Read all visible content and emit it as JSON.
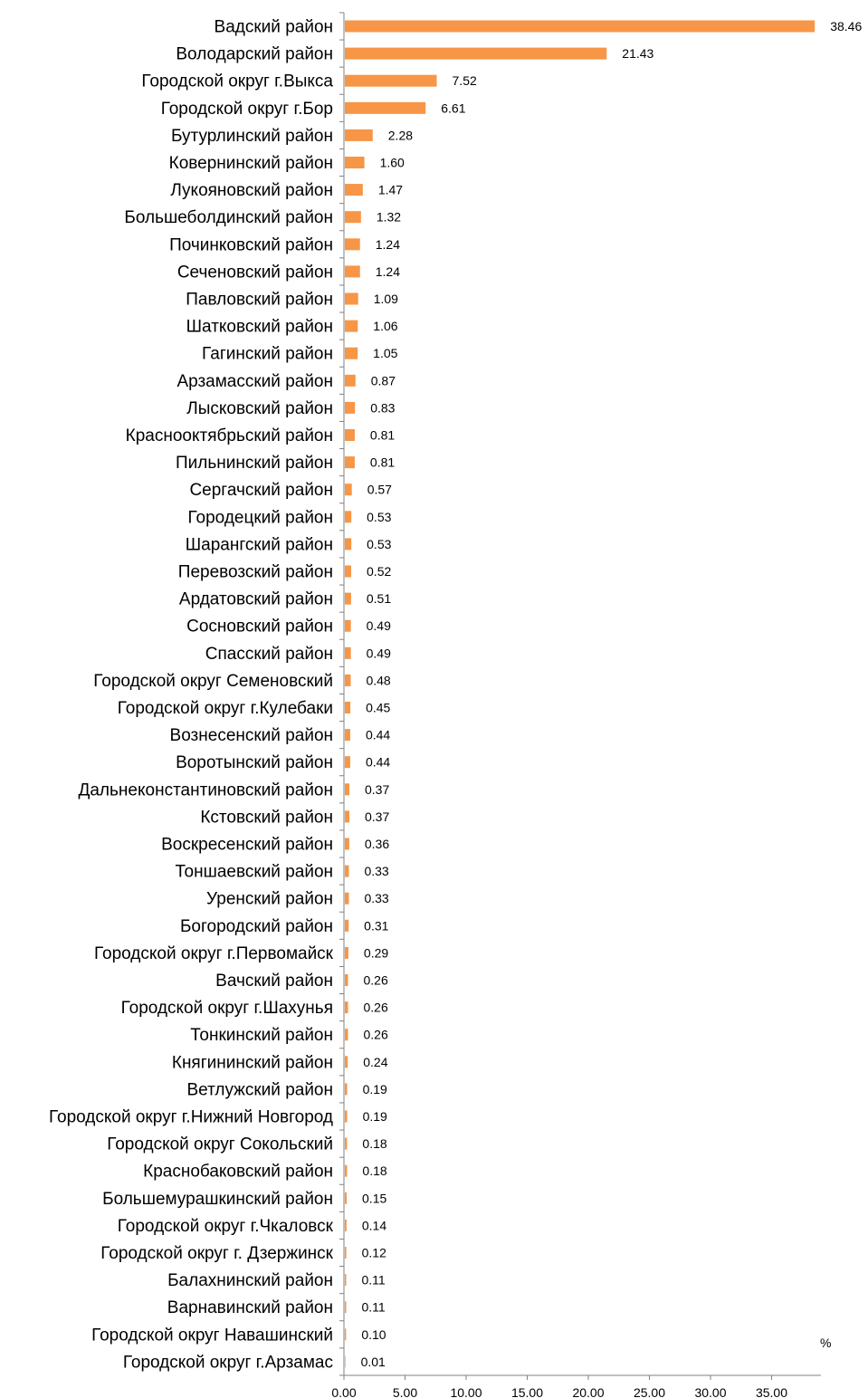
{
  "chart_data": {
    "type": "bar",
    "orientation": "horizontal",
    "categories": [
      "Вадский  район",
      "Володарский район",
      "Городской округ г.Выкса",
      "Городской округ г.Бор",
      "Бутурлинский район",
      "Ковернинский район",
      "Лукояновский район",
      "Большеболдинский район",
      "Починковский район",
      "Сеченовский район",
      "Павловский район",
      "Шатковский район",
      "Гагинский район",
      "Арзамасский район",
      "Лысковский район",
      "Краснооктябрьский район",
      "Пильнинский район",
      "Сергачский район",
      "Городецкий район",
      "Шарангский район",
      "Перевозский район",
      "Ардатовский район",
      "Сосновский район",
      "Спасский район",
      "Городской округ Семеновский",
      "Городской округ г.Кулебаки",
      "Вознесенский район",
      "Воротынский район",
      "Дальнеконстантиновский район",
      "Кстовский район",
      "Воскресенский район",
      "Тоншаевский район",
      "Уренский район",
      "Богородский район",
      "Городской округ г.Первомайск",
      "Вачский район",
      "Городской округ г.Шахунья",
      "Тонкинский район",
      "Княгининский район",
      "Ветлужский район",
      "Городской округ г.Нижний Новгород",
      "Городской округ Сокольский",
      "Краснобаковский район",
      "Большемурашкинский район",
      "Городской округ г.Чкаловск",
      "Городской округ г. Дзержинск",
      "Балахнинский район",
      "Варнавинский район",
      "Городской округ Навашинский",
      "Городской округ г.Арзамас"
    ],
    "values": [
      38.46,
      21.43,
      7.52,
      6.61,
      2.28,
      1.6,
      1.47,
      1.32,
      1.24,
      1.24,
      1.09,
      1.06,
      1.05,
      0.87,
      0.83,
      0.81,
      0.81,
      0.57,
      0.53,
      0.53,
      0.52,
      0.51,
      0.49,
      0.49,
      0.48,
      0.45,
      0.44,
      0.44,
      0.37,
      0.37,
      0.36,
      0.33,
      0.33,
      0.31,
      0.29,
      0.26,
      0.26,
      0.26,
      0.24,
      0.19,
      0.19,
      0.18,
      0.18,
      0.15,
      0.14,
      0.12,
      0.11,
      0.11,
      0.1,
      0.01
    ],
    "value_labels": [
      "38.46",
      "21.43",
      "7.52",
      "6.61",
      "2.28",
      "1.60",
      "1.47",
      "1.32",
      "1.24",
      "1.24",
      "1.09",
      "1.06",
      "1.05",
      "0.87",
      "0.83",
      "0.81",
      "0.81",
      "0.57",
      "0.53",
      "0.53",
      "0.52",
      "0.51",
      "0.49",
      "0.49",
      "0.48",
      "0.45",
      "0.44",
      "0.44",
      "0.37",
      "0.37",
      "0.36",
      "0.33",
      "0.33",
      "0.31",
      "0.29",
      "0.26",
      "0.26",
      "0.26",
      "0.24",
      "0.19",
      "0.19",
      "0.18",
      "0.18",
      "0.15",
      "0.14",
      "0.12",
      "0.11",
      "0.11",
      "0.10",
      "0.01"
    ],
    "x_ticks": [
      0,
      5,
      10,
      15,
      20,
      25,
      30,
      35
    ],
    "x_tick_labels": [
      "0.00",
      "5.00",
      "10.00",
      "15.00",
      "20.00",
      "25.00",
      "30.00",
      "35.00"
    ],
    "xlim": [
      0,
      39
    ],
    "unit_label": "%",
    "title": "",
    "xlabel": "",
    "ylabel": "",
    "grid": false,
    "legend": "none",
    "bar_color": "#F79646",
    "axis_color": "#808080"
  }
}
